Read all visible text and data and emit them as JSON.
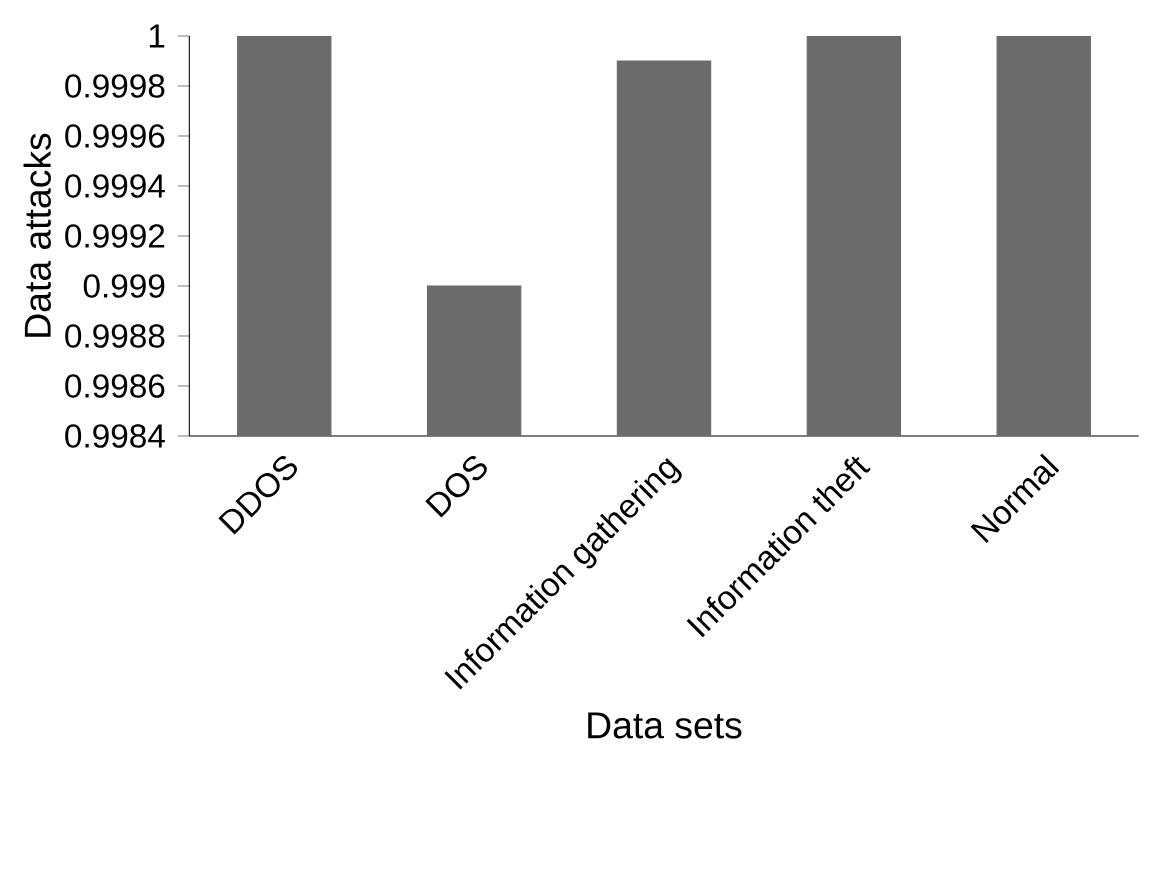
{
  "chart_data": {
    "type": "bar",
    "xlabel": "Data sets",
    "ylabel": "Data attacks",
    "categories": [
      "DDOS",
      "DOS",
      "Information gathering",
      "Information theft",
      "Normal"
    ],
    "values": [
      1,
      0.999,
      0.9999,
      1,
      1
    ],
    "color": "#6b6b6b",
    "ylim": [
      0.9984,
      1
    ],
    "yticks": [
      0.9984,
      0.9986,
      0.9988,
      0.999,
      0.9992,
      0.9994,
      0.9996,
      0.9998,
      1
    ],
    "grid": false
  }
}
